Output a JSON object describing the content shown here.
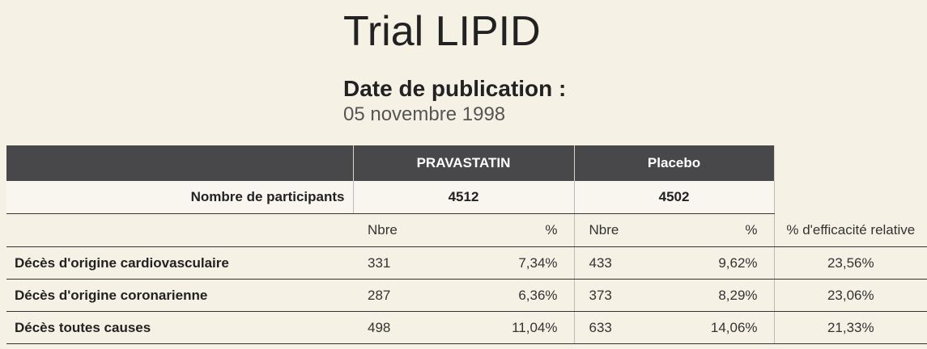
{
  "header": {
    "title": "Trial LIPID",
    "pub_label": "Date de publication :",
    "pub_date": "05 novembre 1998"
  },
  "table": {
    "groups": [
      "PRAVASTATIN",
      "Placebo"
    ],
    "participants": {
      "label": "Nombre de participants",
      "values": [
        "4512",
        "4502"
      ]
    },
    "subheaders": {
      "nbre": "Nbre",
      "pct": "%",
      "eff": "% d'efficacité relative"
    },
    "rows": [
      {
        "label": "Décès d'origine cardiovasculaire",
        "prav_n": "331",
        "prav_pct": "7,34%",
        "plac_n": "433",
        "plac_pct": "9,62%",
        "eff": "23,56%"
      },
      {
        "label": "Décès d'origine coronarienne",
        "prav_n": "287",
        "prav_pct": "6,36%",
        "plac_n": "373",
        "plac_pct": "8,29%",
        "eff": "23,06%"
      },
      {
        "label": "Décès toutes causes",
        "prav_n": "498",
        "prav_pct": "11,04%",
        "plac_n": "633",
        "plac_pct": "14,06%",
        "eff": "21,33%"
      }
    ]
  }
}
